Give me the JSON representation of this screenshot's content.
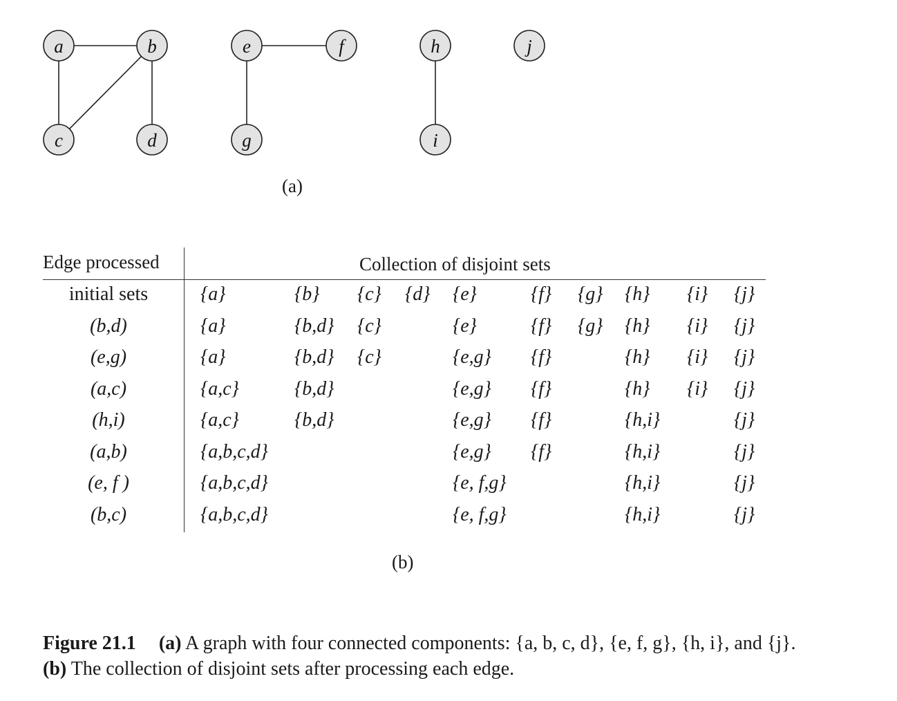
{
  "graph": {
    "nodes": [
      "a",
      "b",
      "c",
      "d",
      "e",
      "f",
      "g",
      "h",
      "i",
      "j"
    ],
    "edges": [
      [
        "a",
        "b"
      ],
      [
        "a",
        "c"
      ],
      [
        "b",
        "c"
      ],
      [
        "b",
        "d"
      ],
      [
        "e",
        "f"
      ],
      [
        "e",
        "g"
      ],
      [
        "h",
        "i"
      ]
    ]
  },
  "part_a_label": "(a)",
  "table": {
    "header_left": "Edge processed",
    "header_right": "Collection of disjoint sets",
    "rows": [
      {
        "edge": "initial sets",
        "sets": [
          "{a}",
          "{b}",
          "{c}",
          "{d}",
          "{e}",
          "{f}",
          "{g}",
          "{h}",
          "{i}",
          "{j}"
        ]
      },
      {
        "edge": "(b,d)",
        "sets": [
          "{a}",
          "{b,d}",
          "{c}",
          "",
          "{e}",
          "{f}",
          "{g}",
          "{h}",
          "{i}",
          "{j}"
        ]
      },
      {
        "edge": "(e,g)",
        "sets": [
          "{a}",
          "{b,d}",
          "{c}",
          "",
          "{e,g}",
          "{f}",
          "",
          "{h}",
          "{i}",
          "{j}"
        ]
      },
      {
        "edge": "(a,c)",
        "sets": [
          "{a,c}",
          "{b,d}",
          "",
          "",
          "{e,g}",
          "{f}",
          "",
          "{h}",
          "{i}",
          "{j}"
        ]
      },
      {
        "edge": "(h,i)",
        "sets": [
          "{a,c}",
          "{b,d}",
          "",
          "",
          "{e,g}",
          "{f}",
          "",
          "{h,i}",
          "",
          "{j}"
        ]
      },
      {
        "edge": "(a,b)",
        "sets": [
          "{a,b,c,d}",
          "",
          "",
          "",
          "{e,g}",
          "{f}",
          "",
          "{h,i}",
          "",
          "{j}"
        ]
      },
      {
        "edge": "(e, f )",
        "sets": [
          "{a,b,c,d}",
          "",
          "",
          "",
          "{e, f,g}",
          "",
          "",
          "{h,i}",
          "",
          "{j}"
        ]
      },
      {
        "edge": "(b,c)",
        "sets": [
          "{a,b,c,d}",
          "",
          "",
          "",
          "{e, f,g}",
          "",
          "",
          "{h,i}",
          "",
          "{j}"
        ]
      }
    ]
  },
  "part_b_label": "(b)",
  "caption": {
    "figure_number": "Figure 21.1",
    "part_a_tag": "(a)",
    "part_a_text": "A graph with four connected components: {a, b, c, d}, {e, f, g}, {h, i}, and {j}.",
    "part_b_tag": "(b)",
    "part_b_text": "The collection of disjoint sets after processing each edge."
  }
}
